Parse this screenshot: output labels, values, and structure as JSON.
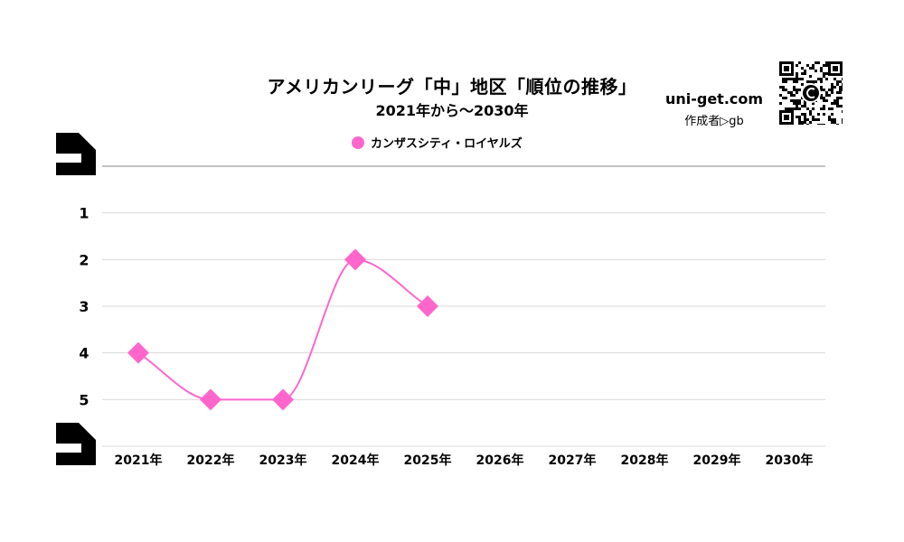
{
  "header": {
    "title": "アメリカンリーグ「中」地区「順位の推移」",
    "subtitle": "2021年から～2030年",
    "site": "uni-get.com",
    "author": "作成者▷gb"
  },
  "chart_data": {
    "type": "line",
    "title": "アメリカンリーグ「中」地区「順位の推移」",
    "subtitle": "2021年から～2030年",
    "categories": [
      "2021年",
      "2022年",
      "2023年",
      "2024年",
      "2025年",
      "2026年",
      "2027年",
      "2028年",
      "2029年",
      "2030年"
    ],
    "series": [
      {
        "name": "カンザスシティ・ロイヤルズ",
        "color": "#ff66cc",
        "marker": "diamond",
        "smooth": true,
        "values": [
          4,
          5,
          5,
          2,
          3,
          null,
          null,
          null,
          null,
          null
        ]
      }
    ],
    "ylim": [
      0,
      6
    ],
    "y_reversed": true,
    "y_ticks": [
      "1",
      "2",
      "3",
      "4",
      "5"
    ],
    "grid": true,
    "legend_position": "top-center",
    "xlabel": "",
    "ylabel": ""
  }
}
